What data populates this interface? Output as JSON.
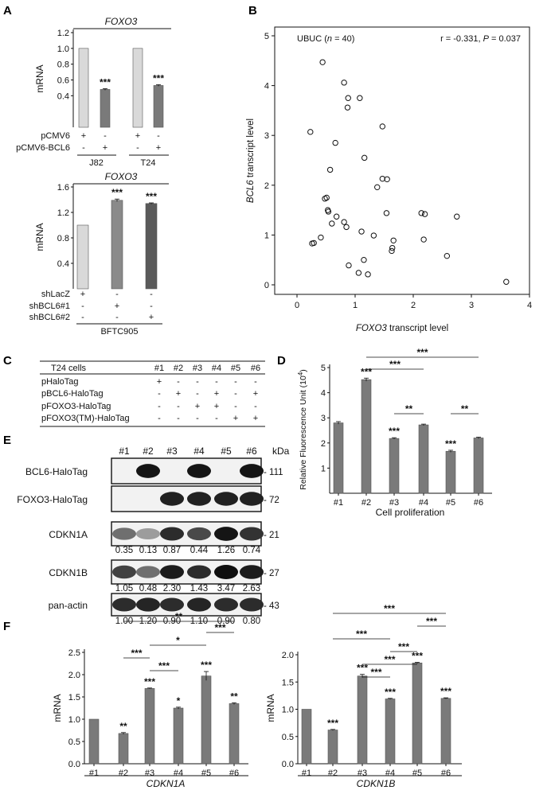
{
  "panel_labels": [
    "A",
    "B",
    "C",
    "D",
    "E",
    "F"
  ],
  "colors": {
    "light_bar": "#d9d9d9",
    "mid_bar": "#7a7a7a",
    "dark_bar": "#5a5a5a",
    "ink": "#111111"
  },
  "chart_data": [
    {
      "id": "A_top",
      "type": "bar",
      "title": "FOXO3",
      "ylabel": "mRNA",
      "ylim": [
        0,
        1.2
      ],
      "yticks": [
        "0.4",
        "0.6",
        "0.8",
        "1.0",
        "1.2"
      ],
      "categories": [
        "1",
        "2",
        "3",
        "4"
      ],
      "values": [
        1.0,
        0.48,
        1.0,
        0.53
      ],
      "errors": [
        0,
        0.01,
        0,
        0.01
      ],
      "significance": [
        "",
        "***",
        "",
        "***"
      ],
      "bar_colors": [
        "#d9d9d9",
        "#7a7a7a",
        "#d9d9d9",
        "#7a7a7a"
      ],
      "conditions": [
        {
          "label": "pCMV6",
          "marks": [
            "+",
            "-",
            "+",
            "-"
          ]
        },
        {
          "label": "pCMV6-BCL6",
          "marks": [
            "-",
            "+",
            "-",
            "+"
          ]
        }
      ],
      "groups": [
        "J82",
        "T24"
      ]
    },
    {
      "id": "A_bottom",
      "type": "bar",
      "title": "FOXO3",
      "ylabel": "mRNA",
      "ylim": [
        0,
        1.6
      ],
      "yticks": [
        "0.4",
        "0.8",
        "1.2",
        "1.6"
      ],
      "categories": [
        "1",
        "2",
        "3"
      ],
      "values": [
        1.0,
        1.39,
        1.34
      ],
      "errors": [
        0,
        0.02,
        0.01
      ],
      "significance": [
        "",
        "***",
        "***"
      ],
      "bar_colors": [
        "#d9d9d9",
        "#8a8a8a",
        "#5a5a5a"
      ],
      "conditions": [
        {
          "label": "shLacZ",
          "marks": [
            "+",
            "-",
            "-"
          ]
        },
        {
          "label": "shBCL6#1",
          "marks": [
            "-",
            "+",
            "-"
          ]
        },
        {
          "label": "shBCL6#2",
          "marks": [
            "-",
            "-",
            "+"
          ]
        }
      ],
      "groups": [
        "BFTC905"
      ]
    },
    {
      "id": "B",
      "type": "scatter",
      "title_prefix": "UBUC (",
      "title_n": "n",
      "title_suffix": " = 40)",
      "stats_r": "r = -0.331, ",
      "stats_p_label": "P",
      "stats_p_value": " = 0.037",
      "xlabel_italic": "FOXO3",
      "xlabel_rest": " transcript level",
      "ylabel_italic": "BCL6",
      "ylabel_rest": " transcript level",
      "xlim": [
        0,
        4
      ],
      "ylim": [
        0,
        5
      ],
      "xticks": [
        "0",
        "1",
        "2",
        "3",
        "4"
      ],
      "yticks": [
        "0",
        "1",
        "2",
        "3",
        "4",
        "5"
      ],
      "points": [
        [
          0.44,
          4.47
        ],
        [
          0.81,
          4.06
        ],
        [
          0.88,
          3.75
        ],
        [
          1.08,
          3.75
        ],
        [
          0.87,
          3.56
        ],
        [
          1.47,
          3.18
        ],
        [
          0.23,
          3.07
        ],
        [
          0.66,
          2.85
        ],
        [
          1.16,
          2.55
        ],
        [
          0.57,
          2.31
        ],
        [
          1.47,
          2.13
        ],
        [
          1.55,
          2.12
        ],
        [
          1.38,
          1.96
        ],
        [
          0.48,
          1.73
        ],
        [
          0.51,
          1.75
        ],
        [
          0.53,
          1.5
        ],
        [
          0.54,
          1.47
        ],
        [
          1.54,
          1.44
        ],
        [
          2.14,
          1.44
        ],
        [
          2.2,
          1.42
        ],
        [
          2.75,
          1.37
        ],
        [
          0.68,
          1.37
        ],
        [
          0.81,
          1.26
        ],
        [
          0.6,
          1.23
        ],
        [
          0.85,
          1.16
        ],
        [
          1.11,
          1.07
        ],
        [
          1.66,
          0.89
        ],
        [
          1.32,
          0.99
        ],
        [
          0.41,
          0.95
        ],
        [
          2.18,
          0.91
        ],
        [
          0.29,
          0.84
        ],
        [
          0.26,
          0.83
        ],
        [
          1.64,
          0.74
        ],
        [
          1.63,
          0.68
        ],
        [
          2.58,
          0.58
        ],
        [
          1.15,
          0.5
        ],
        [
          0.89,
          0.39
        ],
        [
          1.06,
          0.24
        ],
        [
          1.22,
          0.21
        ],
        [
          3.6,
          0.06
        ]
      ]
    },
    {
      "id": "C",
      "type": "table",
      "header": [
        "T24 cells",
        "#1",
        "#2",
        "#3",
        "#4",
        "#5",
        "#6"
      ],
      "rows": [
        {
          "label": "pHaloTag",
          "marks": [
            "+",
            "-",
            "-",
            "-",
            "-",
            "-"
          ]
        },
        {
          "label": "pBCL6-HaloTag",
          "marks": [
            "-",
            "+",
            "-",
            "+",
            "-",
            "+"
          ]
        },
        {
          "label": "pFOXO3-HaloTag",
          "marks": [
            "-",
            "-",
            "+",
            "+",
            "-",
            "-"
          ]
        },
        {
          "label": "pFOXO3(TM)-HaloTag",
          "marks": [
            "-",
            "-",
            "-",
            "-",
            "+",
            "+"
          ]
        }
      ]
    },
    {
      "id": "D",
      "type": "bar",
      "ylabel": "Relative Fluorescence Unit (10",
      "ylabel_sup": "4",
      "ylabel_end": ")",
      "xlabel": "Cell proliferation",
      "ylim": [
        0,
        5
      ],
      "yticks": [
        "1",
        "2",
        "3",
        "4",
        "5"
      ],
      "categories": [
        "#1",
        "#2",
        "#3",
        "#4",
        "#5",
        "#6"
      ],
      "values": [
        2.8,
        4.52,
        2.18,
        2.72,
        1.67,
        2.2
      ],
      "errors": [
        0.05,
        0.06,
        0.03,
        0.03,
        0.04,
        0.03
      ],
      "significance": [
        "",
        "***",
        "***",
        "",
        "***",
        ""
      ],
      "comparisons": [
        {
          "from": 1,
          "to": 5,
          "label": "***"
        },
        {
          "from": 1,
          "to": 3,
          "label": "***"
        },
        {
          "from": 2,
          "to": 3,
          "label": "**"
        },
        {
          "from": 4,
          "to": 5,
          "label": "**"
        }
      ]
    },
    {
      "id": "E",
      "type": "blot",
      "lanes": [
        "#1",
        "#2",
        "#3",
        "#4",
        "#5",
        "#6"
      ],
      "kda_label": "kDa",
      "rows": [
        {
          "label": "BCL6-HaloTag",
          "kda": "- 111",
          "intensity": [
            0,
            0.95,
            0,
            0.95,
            0,
            0.95
          ],
          "quant": []
        },
        {
          "label": "FOXO3-HaloTag",
          "kda": "- 72",
          "intensity": [
            0,
            0,
            0.9,
            0.9,
            0.9,
            0.9
          ],
          "quant": []
        },
        {
          "label": "CDKN1A",
          "kda": "- 21",
          "intensity": [
            0.55,
            0.35,
            0.85,
            0.72,
            0.95,
            0.82
          ],
          "quant": [
            "0.35",
            "0.13",
            "0.87",
            "0.44",
            "1.26",
            "0.74"
          ]
        },
        {
          "label": "CDKN1B",
          "kda": "- 27",
          "intensity": [
            0.75,
            0.55,
            0.92,
            0.85,
            0.98,
            0.92
          ],
          "quant": [
            "1.05",
            "0.48",
            "2.30",
            "1.43",
            "3.47",
            "2.63"
          ]
        },
        {
          "label": "pan-actin",
          "kda": "- 43",
          "intensity": [
            0.85,
            0.88,
            0.85,
            0.88,
            0.85,
            0.85
          ],
          "quant": [
            "1.00",
            "1.20",
            "0.90",
            "1.10",
            "0.90",
            "0.80"
          ]
        }
      ]
    },
    {
      "id": "F_left",
      "type": "bar",
      "ylabel": "mRNA",
      "gene": "CDKN1A",
      "ylim": [
        0,
        2.5
      ],
      "yticks": [
        "0.0",
        "0.5",
        "1.0",
        "1.5",
        "2.0",
        "2.5"
      ],
      "categories": [
        "#1",
        "#2",
        "#3",
        "#4",
        "#5",
        "#6"
      ],
      "values": [
        1.0,
        0.68,
        1.69,
        1.25,
        1.97,
        1.35
      ],
      "errors": [
        0,
        0.02,
        0.01,
        0.02,
        0.1,
        0.02
      ],
      "significance": [
        "",
        "**",
        "***",
        "*",
        "***",
        "**"
      ],
      "comparisons": [
        {
          "from": 1,
          "to": 5,
          "label": "**"
        },
        {
          "from": 4,
          "to": 5,
          "label": "***"
        },
        {
          "from": 2,
          "to": 4,
          "label": "*"
        },
        {
          "from": 1,
          "to": 2,
          "label": "***"
        },
        {
          "from": 2,
          "to": 3,
          "label": "***"
        }
      ]
    },
    {
      "id": "F_right",
      "type": "bar",
      "ylabel": "mRNA",
      "gene": "CDKN1B",
      "ylim": [
        0,
        2.0
      ],
      "yticks": [
        "0.0",
        "0.5",
        "1.0",
        "1.5",
        "2.0"
      ],
      "categories": [
        "#1",
        "#2",
        "#3",
        "#4",
        "#5",
        "#6"
      ],
      "values": [
        1.0,
        0.62,
        1.61,
        1.19,
        1.85,
        1.2
      ],
      "errors": [
        0,
        0.01,
        0.03,
        0.01,
        0.01,
        0.01
      ],
      "significance": [
        "",
        "***",
        "***",
        "***",
        "***",
        "***"
      ],
      "comparisons": [
        {
          "from": 1,
          "to": 5,
          "label": "***"
        },
        {
          "from": 4,
          "to": 5,
          "label": "***"
        },
        {
          "from": 1,
          "to": 3,
          "label": "***"
        },
        {
          "from": 3,
          "to": 4,
          "label": "***"
        },
        {
          "from": 2,
          "to": 4,
          "label": "***"
        },
        {
          "from": 2,
          "to": 3,
          "label": "***"
        }
      ]
    }
  ]
}
